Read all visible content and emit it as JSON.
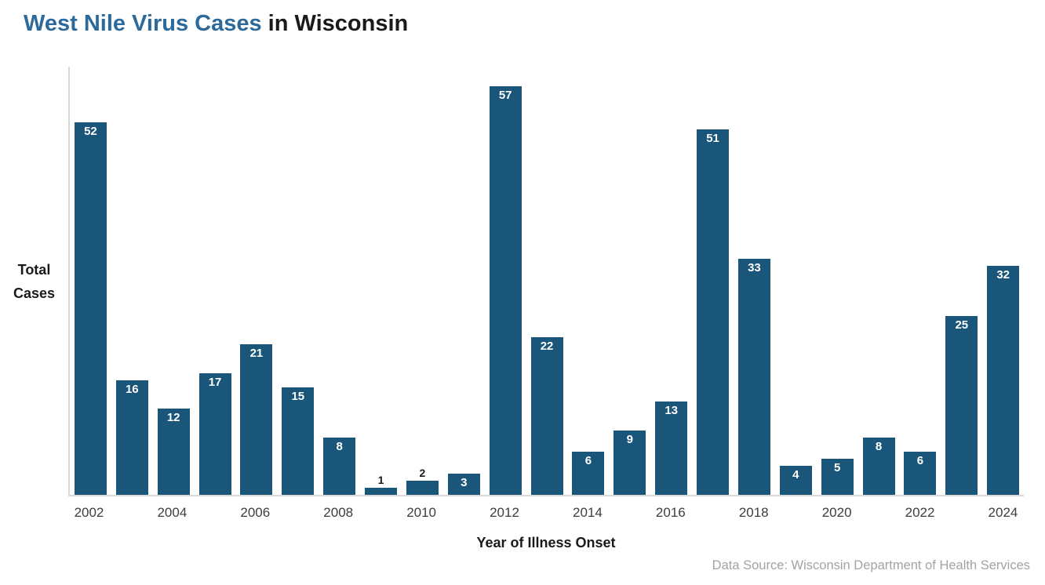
{
  "title": {
    "highlight": "West Nile Virus Cases",
    "rest": " in Wisconsin"
  },
  "source": "Data Source: Wisconsin Department of Health Services",
  "colors": {
    "bar": "#1A567A",
    "title_blue": "#2B6A9B",
    "axis": "#D9D9D9",
    "source_gray": "#A3A3A3",
    "bar_label_inside": "#FFFFFF",
    "bar_label_outside": "#1A1A1A"
  },
  "chart_data": {
    "type": "bar",
    "title": "West Nile Virus Cases in Wisconsin",
    "xlabel": "Year of Illness Onset",
    "ylabel": "Total Cases",
    "ylabel_line1": "Total",
    "ylabel_line2": "Cases",
    "x": [
      2002,
      2003,
      2004,
      2005,
      2006,
      2007,
      2008,
      2009,
      2010,
      2011,
      2012,
      2013,
      2014,
      2015,
      2016,
      2017,
      2018,
      2019,
      2020,
      2021,
      2022,
      2023,
      2024
    ],
    "values": [
      52,
      16,
      12,
      17,
      21,
      15,
      8,
      1,
      2,
      3,
      57,
      22,
      6,
      9,
      13,
      51,
      33,
      4,
      5,
      8,
      6,
      25,
      32
    ],
    "x_tick_labels": [
      "2002",
      "2004",
      "2006",
      "2008",
      "2010",
      "2012",
      "2014",
      "2016",
      "2018",
      "2020",
      "2022",
      "2024"
    ],
    "ylim": [
      0,
      60
    ],
    "grid": false,
    "legend": false,
    "bar_labels_shown": true,
    "small_value_label_cutoff": 3
  }
}
